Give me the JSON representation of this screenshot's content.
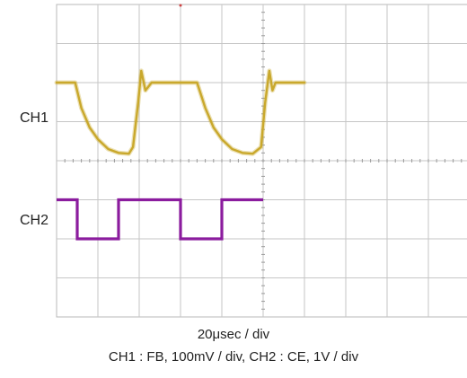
{
  "labels": {
    "ch1": "CH1",
    "ch2": "CH2",
    "timebase": "20μsec / div",
    "scales": "CH1 : FB, 100mV / div,    CH2 : CE, 1V / div"
  },
  "chart_data": {
    "type": "line",
    "x_unit": "μs",
    "xlim": [
      0,
      200
    ],
    "grid": true,
    "grid_divisions": {
      "x": 10,
      "y": 8
    },
    "series": [
      {
        "name": "CH1",
        "color": "#c9a82c",
        "unit": "div",
        "x": [
          0,
          9,
          12,
          16,
          20,
          25,
          30,
          35,
          37,
          39.5,
          41,
          43,
          46,
          50,
          60,
          68,
          72,
          76,
          80,
          85,
          90,
          95,
          99,
          101,
          103,
          104.5,
          106,
          109,
          113,
          120
        ],
        "y": [
          6.0,
          6.0,
          5.35,
          4.85,
          4.55,
          4.3,
          4.2,
          4.18,
          4.35,
          5.5,
          6.3,
          5.8,
          6.0,
          6.0,
          6.0,
          6.0,
          5.35,
          4.85,
          4.55,
          4.3,
          4.2,
          4.18,
          4.35,
          5.5,
          6.3,
          5.8,
          6.0,
          6.0,
          6.0,
          6.0
        ]
      },
      {
        "name": "CH2",
        "color": "#8b1c9e",
        "unit": "div",
        "x": [
          0,
          10,
          10,
          30,
          30,
          60,
          60,
          80,
          80,
          100
        ],
        "y": [
          3.0,
          3.0,
          2.0,
          2.0,
          3.0,
          3.0,
          2.0,
          2.0,
          3.0,
          3.0
        ]
      }
    ]
  }
}
